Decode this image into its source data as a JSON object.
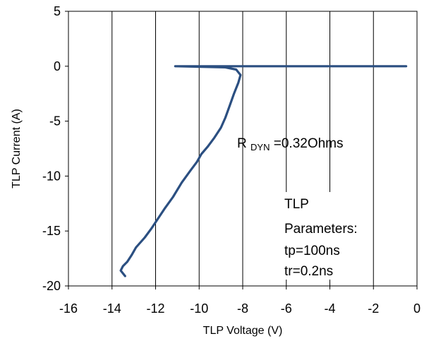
{
  "chart_data": {
    "type": "line",
    "title": "",
    "xlabel": "TLP Voltage (V)",
    "ylabel": "TLP Current (A)",
    "xlim": [
      -16,
      0
    ],
    "ylim": [
      -20,
      5
    ],
    "xticks": [
      -16,
      -14,
      -12,
      -10,
      -8,
      -6,
      -4,
      -2,
      0
    ],
    "yticks": [
      -20,
      -15,
      -10,
      -5,
      0,
      5
    ],
    "grid": {
      "vertical": true,
      "horizontal": false
    },
    "legend": "none",
    "series": [
      {
        "color": "#2b4f81",
        "x": [
          -0.5,
          -11.1,
          -8.8,
          -8.3,
          -8.1,
          -8.2,
          -8.4,
          -8.6,
          -8.8,
          -9.0,
          -9.3,
          -9.6,
          -9.9,
          -10.1,
          -10.4,
          -10.8,
          -11.2,
          -11.6,
          -11.9,
          -12.2,
          -12.5,
          -12.9,
          -13.1,
          -13.3,
          -13.5,
          -13.6,
          -13.4
        ],
        "y": [
          0.0,
          0.0,
          -0.1,
          -0.3,
          -0.8,
          -1.5,
          -2.5,
          -3.6,
          -4.7,
          -5.6,
          -6.5,
          -7.3,
          -8.0,
          -8.7,
          -9.5,
          -10.6,
          -11.9,
          -13.0,
          -13.9,
          -14.8,
          -15.6,
          -16.5,
          -17.2,
          -17.8,
          -18.2,
          -18.6,
          -19.1
        ]
      }
    ],
    "annotations": {
      "rdyn_prefix": "R",
      "rdyn_subscript": "DYN",
      "rdyn_value": "=0.32Ohms",
      "params_lines": [
        "TLP",
        "Parameters:",
        "tp=100ns",
        "tr=0.2ns"
      ]
    }
  }
}
